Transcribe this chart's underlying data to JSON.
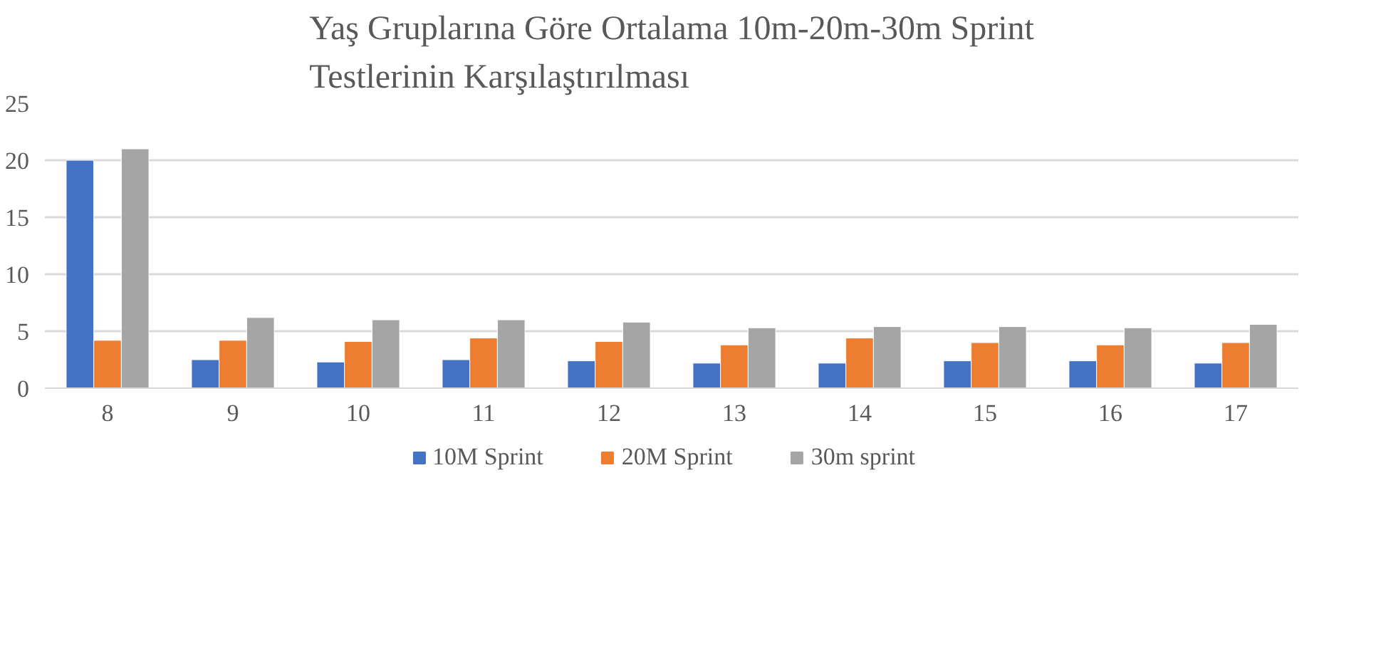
{
  "chart_data": {
    "type": "bar",
    "title": "Yaş Gruplarına Göre Ortalama 10m-20m-30m Sprint\nTestlerinin Karşılaştırılması",
    "categories": [
      "8",
      "9",
      "10",
      "11",
      "12",
      "13",
      "14",
      "15",
      "16",
      "17"
    ],
    "series": [
      {
        "name": "10M Sprint",
        "color": "#4472c4",
        "values": [
          20,
          2.5,
          2.3,
          2.5,
          2.4,
          2.2,
          2.2,
          2.4,
          2.4,
          2.2
        ]
      },
      {
        "name": "20M Sprint",
        "color": "#ed7d31",
        "values": [
          4.2,
          4.2,
          4.1,
          4.4,
          4.1,
          3.8,
          4.4,
          4.0,
          3.8,
          4.0
        ]
      },
      {
        "name": "30m sprint",
        "color": "#a5a5a5",
        "values": [
          21,
          6.2,
          6.0,
          6.0,
          5.8,
          5.3,
          5.4,
          5.4,
          5.3,
          5.6
        ]
      }
    ],
    "ylim": [
      0,
      25
    ],
    "yticks": [
      0,
      5,
      10,
      15,
      20,
      25
    ],
    "grid": "y",
    "legend": "bottom"
  }
}
